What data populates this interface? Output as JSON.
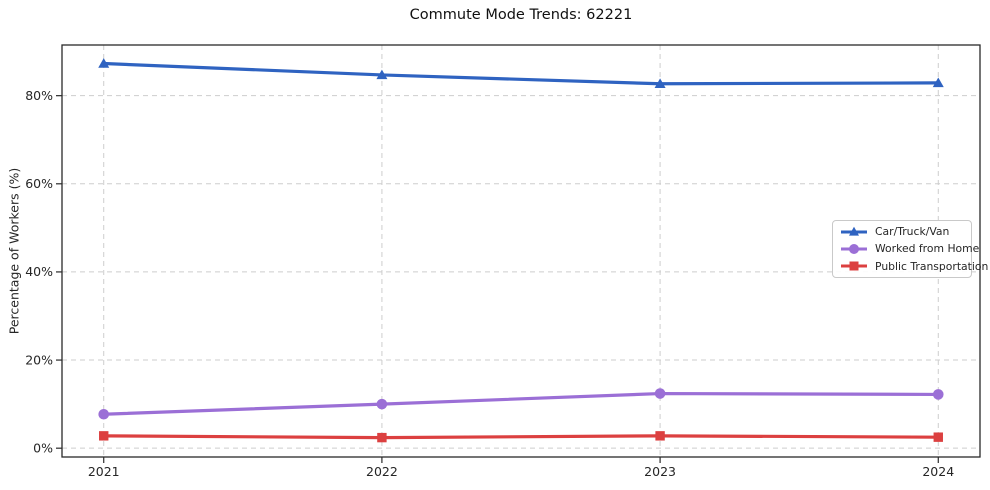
{
  "chart_data": {
    "type": "line",
    "title": "Commute Mode Trends: 62221",
    "xlabel": "",
    "ylabel": "Percentage of Workers (%)",
    "x": [
      2021,
      2022,
      2023,
      2024
    ],
    "x_tick_labels": [
      "2021",
      "2022",
      "2023",
      "2024"
    ],
    "y_ticks": [
      {
        "value": 0,
        "label": "0%"
      },
      {
        "value": 20,
        "label": "20%"
      },
      {
        "value": 40,
        "label": "40%"
      },
      {
        "value": 60,
        "label": "60%"
      },
      {
        "value": 80,
        "label": "80%"
      }
    ],
    "xlim": [
      2020.85,
      2024.15
    ],
    "ylim": [
      -2,
      91.5
    ],
    "grid": {
      "visible": true,
      "style": "dashed",
      "color": "#cdcdcd"
    },
    "legend": {
      "position": "center-right",
      "border_color": "#c9c9c9"
    },
    "series": [
      {
        "name": "Car/Truck/Van",
        "color": "#2f63c1",
        "marker": "triangle",
        "values": [
          87.3,
          84.7,
          82.7,
          82.9
        ]
      },
      {
        "name": "Worked from Home",
        "color": "#9b6fd6",
        "marker": "circle",
        "values": [
          7.7,
          10.0,
          12.4,
          12.2
        ]
      },
      {
        "name": "Public Transportation",
        "color": "#dc4040",
        "marker": "square",
        "values": [
          2.8,
          2.4,
          2.8,
          2.5
        ]
      }
    ]
  }
}
